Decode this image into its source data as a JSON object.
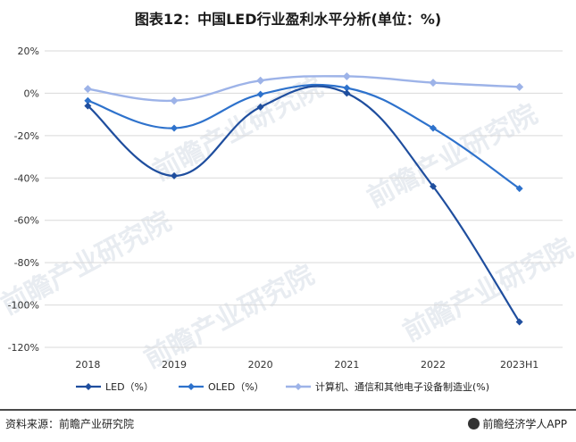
{
  "title": "图表12：中国LED行业盈利水平分析(单位：%)",
  "source_label": "资料来源：前瞻产业研究院",
  "brand_label": "前瞻经济学人APP",
  "watermark_text": "前瞻产业研究院",
  "colors": {
    "led": "#1f4e9e",
    "oled": "#2e72cc",
    "computer": "#9db3e8"
  },
  "chart_data": {
    "type": "line",
    "title": "图表12：中国LED行业盈利水平分析(单位：%)",
    "xlabel": "",
    "ylabel": "",
    "categories": [
      "2018",
      "2019",
      "2020",
      "2021",
      "2022",
      "2023H1"
    ],
    "ylim": [
      -120,
      20
    ],
    "yticks": [
      20,
      0,
      -20,
      -40,
      -60,
      -80,
      -100,
      -120
    ],
    "ytick_labels": [
      "20%",
      "0%",
      "-20%",
      "-40%",
      "-60%",
      "-80%",
      "-100%",
      "-120%"
    ],
    "grid": "horizontal",
    "legend_position": "bottom",
    "series": [
      {
        "name": "LED（%）",
        "values": [
          -6,
          -39,
          -6.5,
          0,
          -44,
          -108
        ]
      },
      {
        "name": "OLED（%）",
        "values": [
          -3.5,
          -16.5,
          -0.5,
          2.5,
          -16.5,
          -45
        ]
      },
      {
        "name": "计算机、通信和其他电子设备制造业(%)",
        "values": [
          2,
          -3.5,
          6,
          8,
          5,
          3
        ]
      }
    ]
  }
}
